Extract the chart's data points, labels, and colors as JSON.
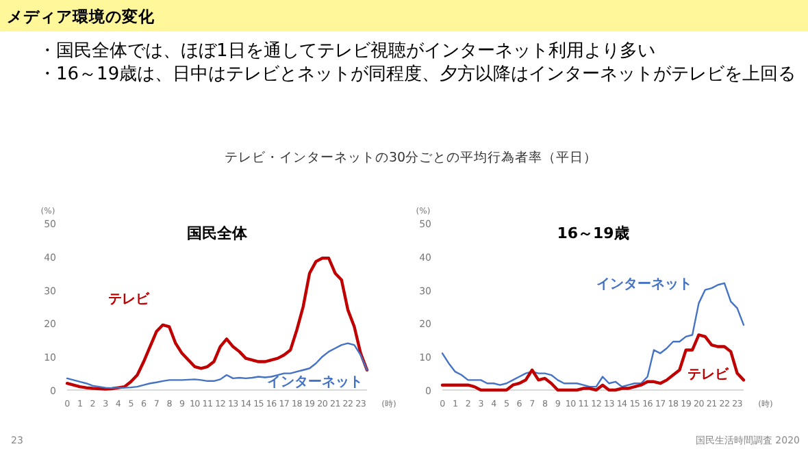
{
  "chart_data": [
    {
      "type": "other",
      "title": "メディア環境の変化",
      "subtitle": "テレビ・インターネットの30分ごとの平均行為者率（平日）",
      "annotations": [
        "・国民全体では、ほぼ1日を通してテレビ視聴がインターネット利用より多い",
        "・16～19歳は、日中はテレビとネットが同程度、夕方以降はインターネットがテレビを上回る",
        "23",
        "国民生活時間調査 2020"
      ]
    },
    {
      "type": "line",
      "title": "国民全体",
      "xlabel": "(時)",
      "ylabel": "(%)",
      "xlim": [
        0,
        23.5
      ],
      "ylim": [
        0,
        50
      ],
      "xticks": [
        0,
        1,
        2,
        3,
        4,
        5,
        6,
        7,
        8,
        9,
        10,
        11,
        12,
        13,
        14,
        15,
        16,
        17,
        18,
        19,
        20,
        21,
        22,
        23
      ],
      "yticks": [
        0,
        10,
        20,
        30,
        40,
        50
      ],
      "x": [
        0,
        0.5,
        1,
        1.5,
        2,
        2.5,
        3,
        3.5,
        4,
        4.5,
        5,
        5.5,
        6,
        6.5,
        7,
        7.5,
        8,
        8.5,
        9,
        9.5,
        10,
        10.5,
        11,
        11.5,
        12,
        12.5,
        13,
        13.5,
        14,
        14.5,
        15,
        15.5,
        16,
        16.5,
        17,
        17.5,
        18,
        18.5,
        19,
        19.5,
        20,
        20.5,
        21,
        21.5,
        22,
        22.5,
        23,
        23.5
      ],
      "series": [
        {
          "name": "テレビ",
          "color": "#c00000",
          "values": [
            2,
            1.5,
            1,
            0.7,
            0.5,
            0.4,
            0.3,
            0.4,
            0.7,
            1,
            2.5,
            4.5,
            8.5,
            13,
            17.5,
            19.5,
            19,
            14,
            11,
            9,
            7,
            6.5,
            7,
            8.5,
            13,
            15.3,
            13,
            11.5,
            9.5,
            9,
            8.5,
            8.5,
            9,
            9.5,
            10.5,
            12,
            18,
            25,
            35,
            38.5,
            39.5,
            39.5,
            35,
            33,
            24,
            19,
            11,
            6
          ]
        },
        {
          "name": "インターネット",
          "color": "#4472c4",
          "values": [
            3.5,
            3,
            2.5,
            2,
            1.3,
            1,
            0.7,
            0.6,
            0.7,
            0.7,
            0.8,
            1,
            1.5,
            2,
            2.3,
            2.7,
            3,
            3,
            3,
            3.1,
            3.2,
            3,
            2.7,
            2.7,
            3.2,
            4.5,
            3.5,
            3.7,
            3.5,
            3.7,
            4,
            3.8,
            4,
            4.5,
            5,
            5,
            5.5,
            6,
            6.5,
            8,
            10,
            11.5,
            12.5,
            13.5,
            14,
            13.5,
            10.5,
            6
          ]
        }
      ]
    },
    {
      "type": "line",
      "title": "16～19歳",
      "xlabel": "(時)",
      "ylabel": "(%)",
      "xlim": [
        0,
        23.5
      ],
      "ylim": [
        0,
        50
      ],
      "xticks": [
        0,
        1,
        2,
        3,
        4,
        5,
        6,
        7,
        8,
        9,
        10,
        11,
        12,
        13,
        14,
        15,
        16,
        17,
        18,
        19,
        20,
        21,
        22,
        23
      ],
      "yticks": [
        0,
        10,
        20,
        30,
        40,
        50
      ],
      "x": [
        0,
        0.5,
        1,
        1.5,
        2,
        2.5,
        3,
        3.5,
        4,
        4.5,
        5,
        5.5,
        6,
        6.5,
        7,
        7.5,
        8,
        8.5,
        9,
        9.5,
        10,
        10.5,
        11,
        11.5,
        12,
        12.5,
        13,
        13.5,
        14,
        14.5,
        15,
        15.5,
        16,
        16.5,
        17,
        17.5,
        18,
        18.5,
        19,
        19.5,
        20,
        20.5,
        21,
        21.5,
        22,
        22.5,
        23,
        23.5
      ],
      "series": [
        {
          "name": "インターネット",
          "color": "#4472c4",
          "values": [
            11,
            8,
            5.5,
            4.5,
            3,
            3,
            3,
            2,
            2,
            1.5,
            2,
            3,
            4,
            5,
            5.5,
            5,
            5,
            4.5,
            3,
            2,
            2,
            2,
            1.5,
            1,
            1,
            4,
            2,
            2.5,
            1,
            1.5,
            2,
            2,
            4,
            12,
            11,
            12.5,
            14.5,
            14.5,
            16,
            16.5,
            26,
            30,
            30.5,
            31.5,
            32,
            26.5,
            24.5,
            19.5
          ]
        },
        {
          "name": "テレビ",
          "color": "#c00000",
          "values": [
            1.5,
            1.5,
            1.5,
            1.5,
            1.5,
            1,
            0,
            0,
            0,
            0,
            0,
            1.5,
            2,
            3,
            6,
            3,
            3.5,
            2,
            0,
            0,
            0,
            0,
            0.5,
            0.5,
            0,
            1.5,
            0,
            0,
            0.5,
            0.5,
            1,
            1.5,
            2.5,
            2.5,
            2,
            3,
            4.5,
            6,
            12,
            12,
            16.5,
            16,
            13.5,
            13,
            13,
            11.5,
            5,
            3
          ]
        }
      ]
    }
  ]
}
